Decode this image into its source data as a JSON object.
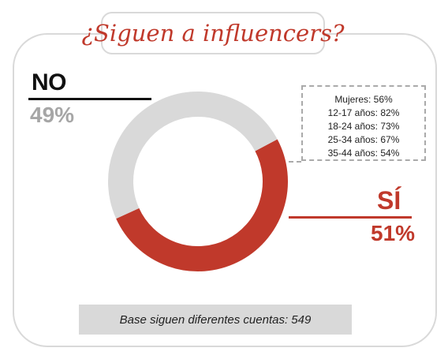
{
  "title": "¿Siguen a influencers?",
  "chart_data": {
    "type": "pie",
    "donut": true,
    "slices": [
      {
        "label": "NO",
        "value": 49,
        "display": "49%",
        "color": "#d9d9d9"
      },
      {
        "label": "SÍ",
        "value": 51,
        "display": "51%",
        "color": "#c0392b"
      }
    ],
    "breakdown": [
      "Mujeres: 56%",
      "12-17 años: 82%",
      "18-24 años: 73%",
      "25-34 años: 67%",
      "35-44 años: 54%"
    ]
  },
  "base_note": "Base siguen diferentes cuentas: 549",
  "colors": {
    "accent": "#c0392b",
    "muted": "#d9d9d9",
    "no_text": "#a6a6a6",
    "dark": "#111111"
  }
}
